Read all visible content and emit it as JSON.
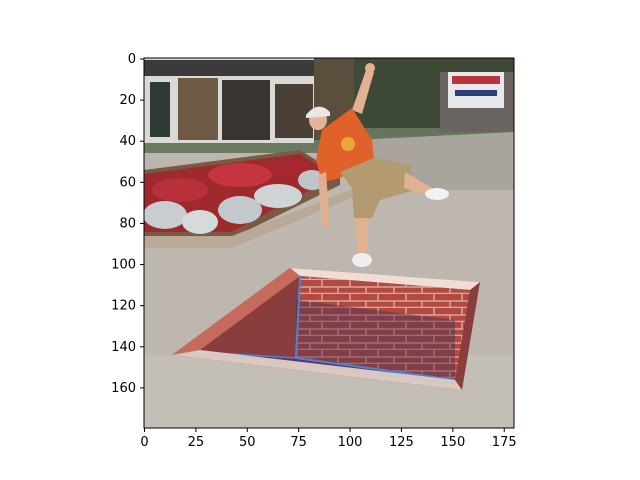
{
  "figure": {
    "image_description_icon": "photo-icon",
    "x_axis": {
      "min": 0,
      "max": 180,
      "ticks": [
        "0",
        "25",
        "50",
        "75",
        "100",
        "125",
        "150",
        "175"
      ]
    },
    "y_axis": {
      "min": 0,
      "max": 180,
      "ticks": [
        "0",
        "20",
        "40",
        "60",
        "80",
        "100",
        "120",
        "140",
        "160"
      ]
    },
    "colors": {
      "shirt": "#e0622a",
      "brick": "#b54a3f",
      "pavement": "#b9b3ad",
      "flowers_red": "#a8242b",
      "foliage": "#c8d0d2"
    }
  }
}
